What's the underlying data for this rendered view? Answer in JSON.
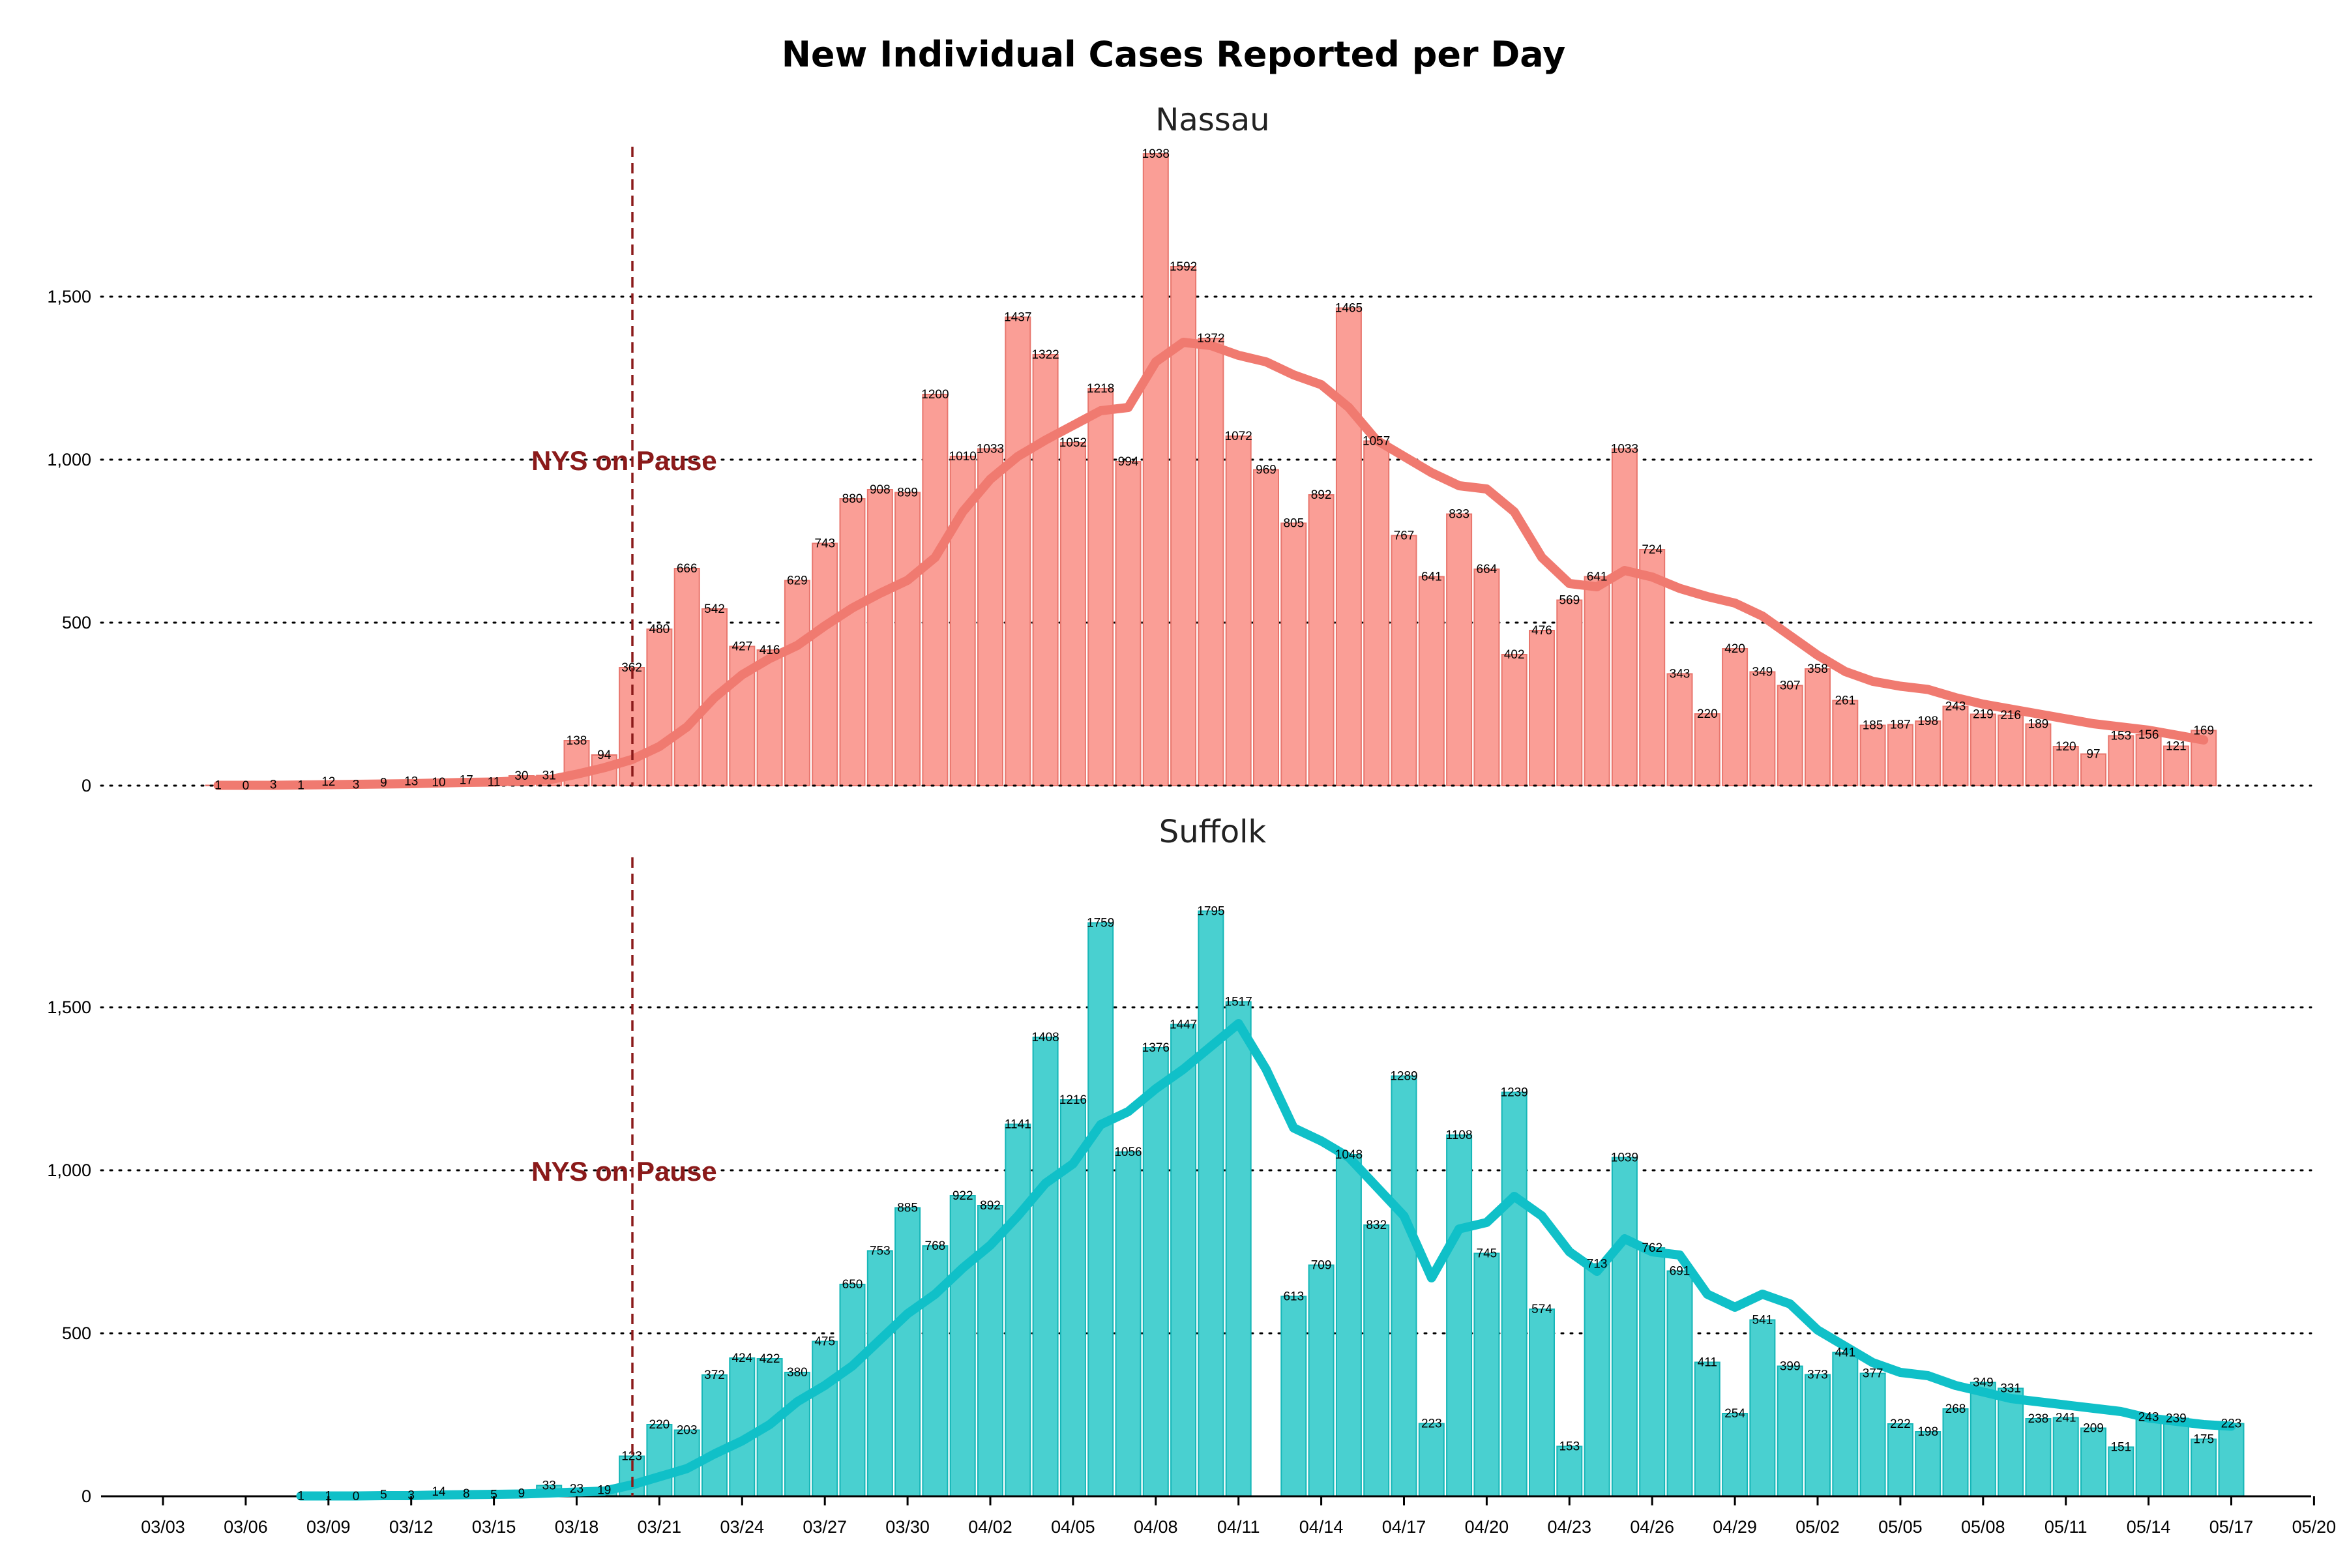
{
  "title": "New Individual Cases Reported per Day",
  "chart_data": {
    "type": "bar",
    "x_tick_labels": [
      "03/03",
      "03/06",
      "03/09",
      "03/12",
      "03/15",
      "03/18",
      "03/21",
      "03/24",
      "03/27",
      "03/30",
      "04/02",
      "04/05",
      "04/08",
      "04/11",
      "04/14",
      "04/17",
      "04/20",
      "04/23",
      "04/26",
      "04/29",
      "05/02",
      "05/05",
      "05/08",
      "05/11",
      "05/14",
      "05/17",
      "05/20"
    ],
    "y_ticks": [
      0,
      500,
      1000,
      1500
    ],
    "y_tick_labels": [
      "0",
      "500",
      "1,000",
      "1,500"
    ],
    "ylim": [
      0,
      1950
    ],
    "grid": "horizontal dotted",
    "annotation": {
      "label": "NYS on Pause",
      "date": "03/20"
    },
    "panels": [
      {
        "title": "Nassau",
        "bar_color": "#fa9e96",
        "bar_edge": "#e8766d",
        "line_color": "#f07a70",
        "start": "03/05",
        "values": [
          1,
          0,
          3,
          1,
          12,
          3,
          9,
          13,
          10,
          17,
          11,
          30,
          31,
          138,
          94,
          362,
          480,
          666,
          542,
          427,
          416,
          629,
          743,
          880,
          908,
          899,
          1200,
          1010,
          1033,
          1437,
          1322,
          1052,
          1218,
          994,
          1938,
          1592,
          1372,
          1072,
          969,
          805,
          892,
          1465,
          1057,
          767,
          641,
          833,
          664,
          402,
          476,
          569,
          641,
          1033,
          724,
          343,
          220,
          420,
          349,
          307,
          358,
          261,
          185,
          187,
          198,
          243,
          219,
          216,
          189,
          120,
          97,
          153,
          156,
          121,
          169
        ],
        "rolling_avg": [
          1,
          1,
          1,
          2,
          3,
          4,
          5,
          6,
          8,
          10,
          11,
          15,
          18,
          35,
          55,
          80,
          120,
          180,
          270,
          340,
          390,
          430,
          490,
          545,
          590,
          630,
          700,
          840,
          940,
          1010,
          1060,
          1105,
          1150,
          1160,
          1300,
          1360,
          1350,
          1320,
          1300,
          1260,
          1230,
          1160,
          1060,
          1010,
          960,
          920,
          910,
          840,
          700,
          620,
          610,
          660,
          640,
          605,
          580,
          560,
          520,
          460,
          400,
          350,
          320,
          305,
          295,
          270,
          250,
          235,
          220,
          205,
          190,
          180,
          170,
          155,
          140
        ]
      },
      {
        "title": "Suffolk",
        "bar_color": "#49d0d0",
        "bar_edge": "#15b6b7",
        "line_color": "#10c0c8",
        "start": "03/08",
        "values": [
          1,
          1,
          0,
          5,
          3,
          14,
          8,
          5,
          9,
          33,
          23,
          19,
          123,
          220,
          203,
          372,
          424,
          422,
          380,
          475,
          650,
          753,
          885,
          768,
          922,
          892,
          1141,
          1408,
          1216,
          1759,
          1056,
          1376,
          1447,
          1795,
          1517,
          null,
          613,
          709,
          1048,
          832,
          1289,
          223,
          1108,
          745,
          1239,
          574,
          153,
          713,
          1039,
          762,
          691,
          411,
          254,
          541,
          399,
          373,
          441,
          377,
          222,
          198,
          268,
          349,
          331,
          238,
          241,
          209,
          151,
          243,
          239,
          175,
          223
        ],
        "rolling_avg": [
          1,
          1,
          1,
          2,
          2,
          4,
          5,
          6,
          7,
          10,
          13,
          16,
          35,
          60,
          85,
          130,
          170,
          220,
          290,
          340,
          400,
          480,
          560,
          620,
          700,
          770,
          860,
          960,
          1020,
          1140,
          1180,
          1250,
          1310,
          1380,
          1450,
          1310,
          1130,
          1090,
          1040,
          950,
          860,
          670,
          820,
          840,
          920,
          860,
          750,
          690,
          790,
          750,
          740,
          620,
          580,
          620,
          590,
          510,
          460,
          410,
          380,
          370,
          340,
          320,
          300,
          290,
          280,
          270,
          260,
          240,
          230,
          220,
          215
        ]
      }
    ]
  }
}
